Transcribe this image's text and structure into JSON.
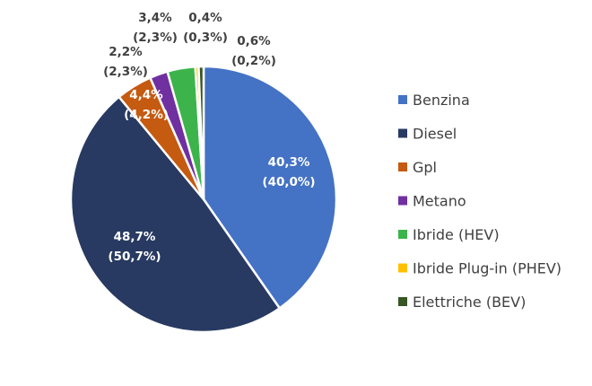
{
  "chart_data": {
    "type": "pie",
    "title": "",
    "series": [
      {
        "name": "Benzina",
        "value": 40.3,
        "secondary": 40.0,
        "label": "40,3%",
        "sublabel": "(40,0%)",
        "color": "#4472C4"
      },
      {
        "name": "Diesel",
        "value": 48.7,
        "secondary": 50.7,
        "label": "48,7%",
        "sublabel": "(50,7%)",
        "color": "#283A61"
      },
      {
        "name": "Gpl",
        "value": 4.4,
        "secondary": 4.2,
        "label": "4,4%",
        "sublabel": "(4,2%)",
        "color": "#C55A11"
      },
      {
        "name": "Metano",
        "value": 2.2,
        "secondary": 2.3,
        "label": "2,2%",
        "sublabel": "(2,3%)",
        "color": "#7030A0"
      },
      {
        "name": "Ibride (HEV)",
        "value": 3.4,
        "secondary": 2.3,
        "label": "3,4%",
        "sublabel": "(2,3%)",
        "color": "#3CB44B"
      },
      {
        "name": "Ibride Plug-in  (PHEV)",
        "value": 0.4,
        "secondary": 0.3,
        "label": "0,4%",
        "sublabel": "(0,3%)",
        "color": "#FFC000"
      },
      {
        "name": "Elettriche (BEV)",
        "value": 0.6,
        "secondary": 0.2,
        "label": "0,6%",
        "sublabel": "(0,2%)",
        "color": "#375623"
      }
    ],
    "legend_position": "right"
  }
}
